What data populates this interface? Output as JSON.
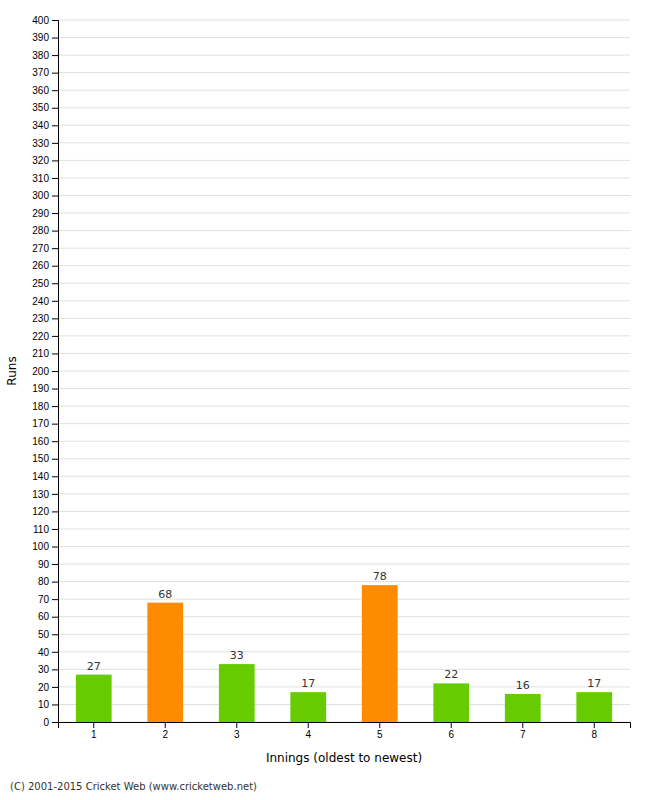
{
  "chart_data": {
    "type": "bar",
    "categories": [
      "1",
      "2",
      "3",
      "4",
      "5",
      "6",
      "7",
      "8"
    ],
    "values": [
      27,
      68,
      33,
      17,
      78,
      22,
      16,
      17
    ],
    "colors": [
      "#66cc00",
      "#ff8c00",
      "#66cc00",
      "#66cc00",
      "#ff8c00",
      "#66cc00",
      "#66cc00",
      "#66cc00"
    ],
    "x_label": "Innings (oldest to newest)",
    "y_label": "Runs",
    "ylim": [
      0,
      400
    ],
    "yticks": [
      0,
      10,
      20,
      30,
      40,
      50,
      60,
      70,
      80,
      90,
      100,
      110,
      120,
      130,
      140,
      150,
      160,
      170,
      180,
      190,
      200,
      210,
      220,
      230,
      240,
      250,
      260,
      270,
      280,
      290,
      300,
      310,
      320,
      330,
      340,
      350,
      360,
      370,
      380,
      390,
      400
    ],
    "grid": true,
    "data_labels": true,
    "annotations": [
      "(C) 2001-2015 Cricket Web (www.cricketweb.net)"
    ]
  }
}
